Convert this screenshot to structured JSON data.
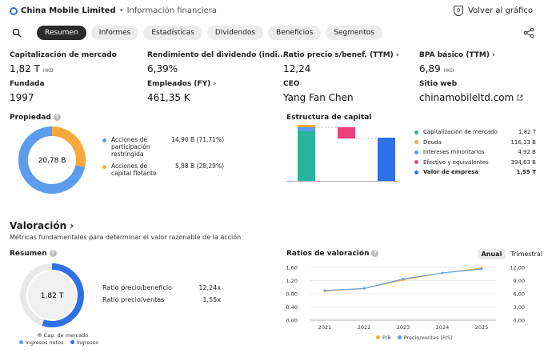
{
  "header": {
    "company": "China Mobile Limited",
    "separator": "•",
    "section": "Información financiera",
    "back_label": "Volver al gráfico"
  },
  "tabs": [
    "Resumen",
    "Informes",
    "Estadísticas",
    "Dividendos",
    "Beneficios",
    "Segmentos"
  ],
  "stats": [
    {
      "label": "Capitalización de mercado",
      "value": "1,82 T",
      "unit": "HKD",
      "arrow": ""
    },
    {
      "label": "Rendimiento del dividendo (indi...",
      "value": "6,39%",
      "unit": "",
      "arrow": "›"
    },
    {
      "label": "Ratio precio s/benef. (TTM)",
      "value": "12,24",
      "unit": "",
      "arrow": "›"
    },
    {
      "label": "BPA básico (TTM)",
      "value": "6,89",
      "unit": "HKD",
      "arrow": "›"
    },
    {
      "label": "Fundada",
      "value": "1997",
      "unit": "",
      "arrow": ""
    },
    {
      "label": "Empleados (FY)",
      "value": "461,35 K",
      "unit": "",
      "arrow": "›"
    },
    {
      "label": "CEO",
      "value": "Yang Fan Chen",
      "unit": "",
      "arrow": ""
    },
    {
      "label": "Sitio web",
      "value": "chinamobileltd.com",
      "unit": "",
      "arrow": ""
    }
  ],
  "ownership": {
    "title": "Propiedad",
    "center": "20,78 B",
    "items": [
      {
        "label": "Acciones de participación restringida",
        "value": "14,90 B (71,71%)",
        "color": "#5b9cec",
        "fraction": 0.7171
      },
      {
        "label": "Acciones de capital flotante",
        "value": "5,88 B (28,29%)",
        "color": "#f5a93b",
        "fraction": 0.2829
      }
    ]
  },
  "capital": {
    "title": "Estructura de capital",
    "items": [
      {
        "label": "Capitalización de mercado",
        "value": "1,82 T",
        "color": "#26b59a"
      },
      {
        "label": "Deuda",
        "value": "116,13 B",
        "color": "#f5a93b"
      },
      {
        "label": "Intereses minoritarios",
        "value": "4,92 B",
        "color": "#5b9cec"
      },
      {
        "label": "Efectivo y equivalentes",
        "value": "394,63 B",
        "color": "#ec407a"
      },
      {
        "label": "Valor de empresa",
        "value": "1,55 T",
        "color": "#2f6fe8"
      }
    ]
  },
  "valuation": {
    "title": "Valoración ›",
    "subtitle": "Métricas fundamentales para determinar el valor razonable de la acción",
    "summary_title": "Resumen",
    "summary_center": "1,82 T",
    "summary_fill": 0.55,
    "ratios": [
      {
        "label": "Ratio precio/beneficio",
        "value": "12,24x"
      },
      {
        "label": "Ratio precio/ventas",
        "value": "1,55x"
      }
    ],
    "legend": [
      "Cap. de mercado",
      "Ingresos netos",
      "Ingresos"
    ],
    "legend_colors": [
      "#aaaaaa",
      "#5b9cec",
      "#2f6fe8"
    ]
  },
  "chart_data": {
    "type": "line",
    "title": "Ratios de valoración",
    "toggle": [
      "Anual",
      "Trimestral"
    ],
    "x": [
      "2021",
      "2022",
      "2023",
      "2024",
      "2025"
    ],
    "left_ticks": [
      "1,60",
      "1,20",
      "0,80",
      "0,40",
      "0,00"
    ],
    "right_ticks": [
      "12,00",
      "9,00",
      "6,00",
      "3,00",
      "0,00"
    ],
    "ylim_left": [
      0,
      1.6
    ],
    "ylim_right": [
      0,
      12
    ],
    "series": [
      {
        "name": "P/B",
        "axis": "left",
        "color": "#f5a93b",
        "values": [
          0.88,
          0.96,
          1.22,
          1.43,
          1.58
        ]
      },
      {
        "name": "Precio/ventas (P/S)",
        "axis": "left",
        "color": "#5b9cec",
        "values": [
          0.9,
          0.96,
          1.25,
          1.43,
          1.55
        ]
      }
    ]
  }
}
